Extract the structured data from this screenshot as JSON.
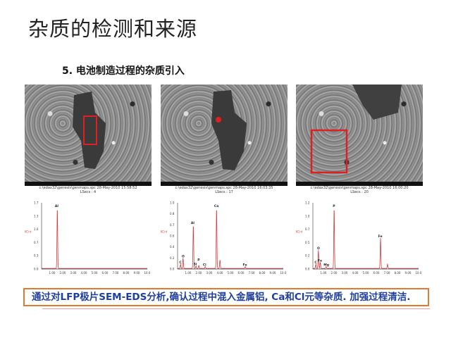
{
  "title": "杂质的检测和来源",
  "subtitle": "5. 电池制造过程的杂质引入",
  "panels": [
    {
      "caption_line1": "c:\\edax32\\genesis\\genmaps.spc  28-May-2010 15:58:52",
      "caption_line2": "LSecs : 4",
      "highlight": "narrow vertical box on dark particle",
      "spectrum": {
        "type": "line",
        "x_unit": "keV",
        "xlim": [
          0,
          10
        ],
        "y_tick_labels": [
          "0.0",
          "0.3",
          "0.7",
          "1.0",
          "1.3",
          "1.7"
        ],
        "x_tick_labels": [
          "1.00",
          "2.00",
          "3.00",
          "4.00",
          "5.00",
          "6.00",
          "7.00",
          "8.00",
          "9.00",
          "10.0"
        ],
        "cursor_label": "KCnt",
        "peaks": [
          {
            "label": "Al",
            "energy": 1.49,
            "rel_intensity": 1.0
          }
        ]
      }
    },
    {
      "caption_line1": "c:\\edax32\\genesis\\genmaps.spc  28-May-2010 16:03:35",
      "caption_line2": "LSecs : 17",
      "highlight": "small spot on particle edge",
      "spectrum": {
        "type": "line",
        "x_unit": "keV",
        "xlim": [
          0,
          10
        ],
        "y_tick_labels": [
          "0.0",
          "0.2",
          "0.4",
          "0.6",
          "0.7",
          "0.8",
          "1.0"
        ],
        "x_tick_labels": [
          "1.00",
          "2.00",
          "3.00",
          "4.00",
          "5.00",
          "6.00",
          "7.00",
          "8.00",
          "9.00",
          "10.0"
        ],
        "cursor_label": "KCnt",
        "peaks": [
          {
            "label": "C",
            "energy": 0.28,
            "rel_intensity": 0.07
          },
          {
            "label": "O",
            "energy": 0.52,
            "rel_intensity": 0.17
          },
          {
            "label": "Al",
            "energy": 1.49,
            "rel_intensity": 0.72
          },
          {
            "label": "Si",
            "energy": 1.74,
            "rel_intensity": 0.04
          },
          {
            "label": "P",
            "energy": 2.01,
            "rel_intensity": 0.05
          },
          {
            "label": "Cl",
            "energy": 2.62,
            "rel_intensity": 0.03
          },
          {
            "label": "Ca",
            "energy": 3.69,
            "rel_intensity": 1.0
          },
          {
            "label": "",
            "energy": 4.01,
            "rel_intensity": 0.14
          },
          {
            "label": "Fe",
            "energy": 6.4,
            "rel_intensity": 0.03
          }
        ]
      }
    },
    {
      "caption_line1": "c:\\edax32\\genesis\\genmaps.spc  28-May-2010 16:00:20",
      "caption_line2": "LSecs : 20",
      "highlight": "large square area",
      "spectrum": {
        "type": "line",
        "x_unit": "keV",
        "xlim": [
          0,
          10
        ],
        "y_tick_labels": [
          "0.0",
          "0.2",
          "0.5",
          "0.7",
          "1.0",
          "1.2"
        ],
        "x_tick_labels": [
          "1.00",
          "2.00",
          "3.00",
          "4.00",
          "5.00",
          "6.00",
          "7.00",
          "8.00",
          "9.00",
          "10.0"
        ],
        "cursor_label": "KCnt",
        "peaks": [
          {
            "label": "C",
            "energy": 0.28,
            "rel_intensity": 0.07
          },
          {
            "label": "O",
            "energy": 0.52,
            "rel_intensity": 0.3
          },
          {
            "label": "Fe",
            "energy": 0.7,
            "rel_intensity": 0.1
          },
          {
            "label": "Mg",
            "energy": 1.25,
            "rel_intensity": 0.03
          },
          {
            "label": "P",
            "energy": 2.01,
            "rel_intensity": 1.0
          },
          {
            "label": "Fe",
            "energy": 6.4,
            "rel_intensity": 0.5
          },
          {
            "label": "",
            "energy": 7.06,
            "rel_intensity": 0.07
          }
        ]
      }
    }
  ],
  "note": "通过对LFP极片SEM-EDS分析,确认过程中混入金属铝, Ca和Cl元等杂质. 加强过程清洁.",
  "colors": {
    "highlight": "#e02020",
    "spectrum": "#d04040",
    "note_border": "#e07a2f",
    "note_text": "#1f3fa0"
  }
}
